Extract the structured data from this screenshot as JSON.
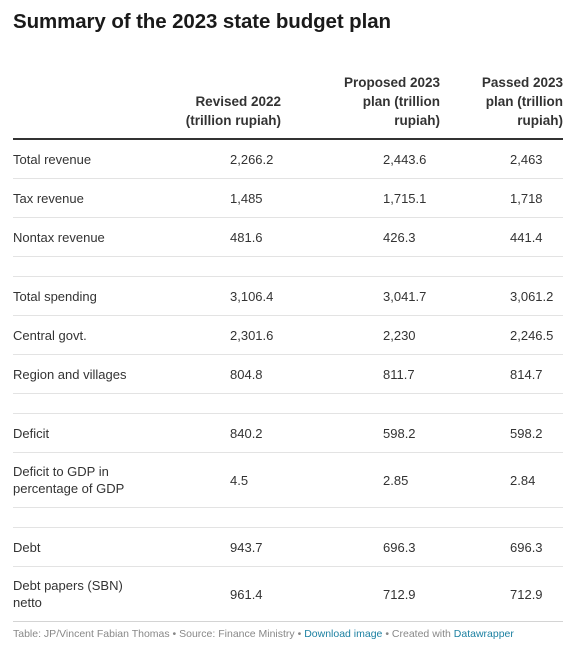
{
  "title": "Summary of the 2023 state budget plan",
  "table": {
    "headers": {
      "label": "",
      "revised_line1": "Revised 2022",
      "revised_line2": "(trillion rupiah)",
      "proposed_line1": "Proposed 2023",
      "proposed_line2": "plan (trillion",
      "proposed_line3": "rupiah)",
      "passed_line1": "Passed 2023",
      "passed_line2": "plan (trillion",
      "passed_line3": "rupiah)"
    },
    "rows": [
      {
        "label": "Total revenue",
        "revised": "2,266.2",
        "proposed": "2,443.6",
        "passed": "2,463"
      },
      {
        "label": "Tax revenue",
        "revised": "1,485",
        "proposed": "1,715.1",
        "passed": "1,718"
      },
      {
        "label": "Nontax revenue",
        "revised": "481.6",
        "proposed": "426.3",
        "passed": "441.4"
      },
      {
        "label": "Total spending",
        "revised": "3,106.4",
        "proposed": "3,041.7",
        "passed": "3,061.2"
      },
      {
        "label": "Central govt.",
        "revised": "2,301.6",
        "proposed": "2,230",
        "passed": "2,246.5"
      },
      {
        "label": "Region and villages",
        "revised": "804.8",
        "proposed": "811.7",
        "passed": "814.7"
      },
      {
        "label": "Deficit",
        "revised": "840.2",
        "proposed": "598.2",
        "passed": "598.2"
      },
      {
        "label_line1": "Deficit to GDP in",
        "label_line2": "percentage of GDP",
        "revised": "4.5",
        "proposed": "2.85",
        "passed": "2.84"
      },
      {
        "label": "Debt",
        "revised": "943.7",
        "proposed": "696.3",
        "passed": "696.3"
      },
      {
        "label_line1": "Debt papers (SBN)",
        "label_line2": "netto",
        "revised": "961.4",
        "proposed": "712.9",
        "passed": "712.9"
      }
    ]
  },
  "footer": {
    "source_text": "Table: JP/Vincent Fabian Thomas • Source: Finance Ministry • ",
    "download_label": "Download image",
    "created_text": " • Created with ",
    "datawrapper_label": "Datawrapper"
  },
  "colors": {
    "title": "#1a1a1a",
    "text": "#333333",
    "footer": "#888888",
    "link": "#1d81a2"
  }
}
